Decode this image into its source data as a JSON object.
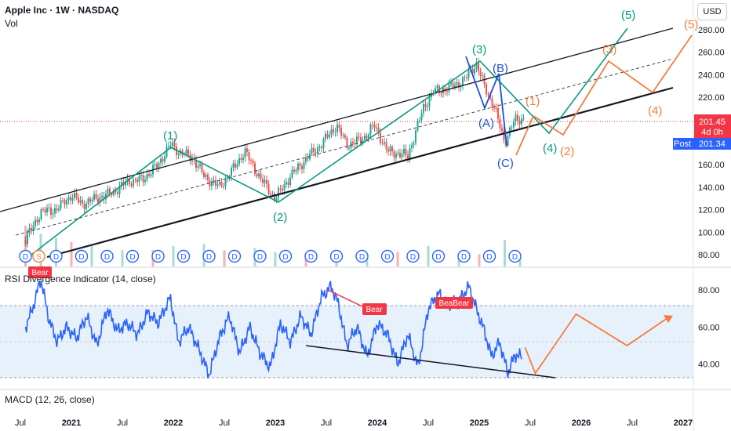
{
  "header": {
    "symbol_title": "Apple Inc · 1W · NASDAQ",
    "volume_label": "Vol",
    "currency_button": "USD"
  },
  "price_tags": {
    "last_price": "201.45",
    "countdown": "4d 0h",
    "post_label": "Post",
    "post_price": "201.34"
  },
  "rsi_pane": {
    "title": "RSI Divergence Indicator (14, close)"
  },
  "macd_pane": {
    "title": "MACD (12, 26, close)"
  },
  "colors": {
    "price_up": "#26a69a",
    "price_down": "#ef5350",
    "teal_wave": "#089981",
    "orange_wave": "#f57c3a",
    "blue_wave": "#1e50d8",
    "rsi_line": "#2962ff",
    "rsi_band": "#e3eefb",
    "bear_tag": "#f23645",
    "price_tag": "#f23645",
    "post_tag": "#2962ff"
  },
  "chart_data": [
    {
      "type": "line",
      "pane": "price",
      "title": "Apple Inc · 1W · NASDAQ",
      "x_axis_ticks": [
        "Jul",
        "2021",
        "Jul",
        "2022",
        "Jul",
        "2023",
        "Jul",
        "2024",
        "Jul",
        "2025",
        "Jul",
        "2026",
        "Jul",
        "2027"
      ],
      "y_axis_ticks": [
        "280.00",
        "260.00",
        "240.00",
        "220.00",
        "200.00",
        "180.00",
        "160.00",
        "140.00",
        "120.00",
        "100.00",
        "80.00"
      ],
      "ylim": [
        73,
        296
      ],
      "last_price": 201.45,
      "post_price": 201.34,
      "series": [
        {
          "kind": "price",
          "x": [
            2020.55,
            2020.7,
            2020.85,
            2021.0,
            2021.1,
            2021.25,
            2021.4,
            2021.55,
            2021.7,
            2021.85,
            2021.97,
            2022.05,
            2022.2,
            2022.3,
            2022.45,
            2022.6,
            2022.7,
            2022.85,
            2023.0,
            2023.15,
            2023.3,
            2023.45,
            2023.6,
            2023.7,
            2023.85,
            2023.97,
            2024.1,
            2024.3,
            2024.45,
            2024.55,
            2024.7,
            2024.85,
            2024.97,
            2025.05,
            2025.15,
            2025.25,
            2025.35,
            2025.45
          ],
          "values": [
            93,
            118,
            120,
            133,
            125,
            130,
            135,
            145,
            147,
            160,
            178,
            172,
            165,
            150,
            140,
            158,
            172,
            148,
            130,
            150,
            165,
            178,
            195,
            178,
            182,
            195,
            172,
            168,
            210,
            225,
            228,
            235,
            250,
            230,
            210,
            180,
            200,
            201
          ]
        },
        {
          "kind": "volume",
          "x": [
            2020.55,
            2020.7,
            2020.85,
            2021.0,
            2021.2,
            2021.5,
            2021.8,
            2022.0,
            2022.3,
            2022.5,
            2022.8,
            2023.0,
            2023.3,
            2023.6,
            2023.9,
            2024.2,
            2024.5,
            2024.8,
            2025.0,
            2025.25,
            2025.4
          ],
          "values": [
            1.0,
            0.8,
            0.7,
            0.6,
            0.5,
            0.4,
            0.4,
            0.5,
            0.55,
            0.4,
            0.45,
            0.35,
            0.3,
            0.3,
            0.3,
            0.35,
            0.5,
            0.3,
            0.3,
            0.65,
            0.3
          ]
        }
      ],
      "wave_labels": {
        "teal": [
          "(1)",
          "(2)",
          "(3)",
          "(4)",
          "(5)"
        ],
        "orange": [
          "(1)",
          "(2)",
          "(3)",
          "(4)",
          "(5)"
        ],
        "blue": [
          "(A)",
          "(B)",
          "(C)"
        ]
      },
      "markers": {
        "dividend": "D",
        "split": "S"
      }
    },
    {
      "type": "line",
      "pane": "rsi",
      "title": "RSI Divergence Indicator (14, close)",
      "y_axis_ticks": [
        "80.00",
        "60.00",
        "40.00"
      ],
      "ylim": [
        28,
        91
      ],
      "band": [
        30,
        70
      ],
      "series": [
        {
          "kind": "rsi",
          "x": [
            2020.55,
            2020.62,
            2020.7,
            2020.78,
            2020.86,
            2020.95,
            2021.05,
            2021.15,
            2021.25,
            2021.35,
            2021.45,
            2021.55,
            2021.65,
            2021.75,
            2021.85,
            2021.97,
            2022.05,
            2022.15,
            2022.25,
            2022.35,
            2022.45,
            2022.55,
            2022.65,
            2022.75,
            2022.85,
            2022.95,
            2023.05,
            2023.15,
            2023.25,
            2023.35,
            2023.45,
            2023.55,
            2023.62,
            2023.7,
            2023.8,
            2023.9,
            2024.0,
            2024.1,
            2024.2,
            2024.3,
            2024.4,
            2024.5,
            2024.6,
            2024.7,
            2024.8,
            2024.9,
            2024.97,
            2025.05,
            2025.12,
            2025.2,
            2025.28,
            2025.35,
            2025.42
          ],
          "values": [
            60,
            70,
            86,
            64,
            52,
            60,
            54,
            66,
            50,
            70,
            58,
            62,
            56,
            68,
            62,
            76,
            52,
            60,
            48,
            34,
            54,
            66,
            46,
            60,
            46,
            38,
            62,
            52,
            66,
            56,
            76,
            82,
            72,
            50,
            60,
            44,
            62,
            56,
            40,
            56,
            38,
            70,
            78,
            72,
            74,
            82,
            70,
            58,
            44,
            52,
            35,
            45,
            44
          ]
        },
        {
          "kind": "projection",
          "x": [
            2025.45,
            2025.55,
            2025.95,
            2026.45,
            2026.85
          ],
          "values": [
            49,
            35,
            67,
            50,
            65
          ]
        }
      ],
      "tags": [
        "Bear",
        "Bear",
        "BeaBear"
      ]
    },
    {
      "type": "line",
      "pane": "macd",
      "title": "MACD (12, 26, close)",
      "series": []
    }
  ]
}
